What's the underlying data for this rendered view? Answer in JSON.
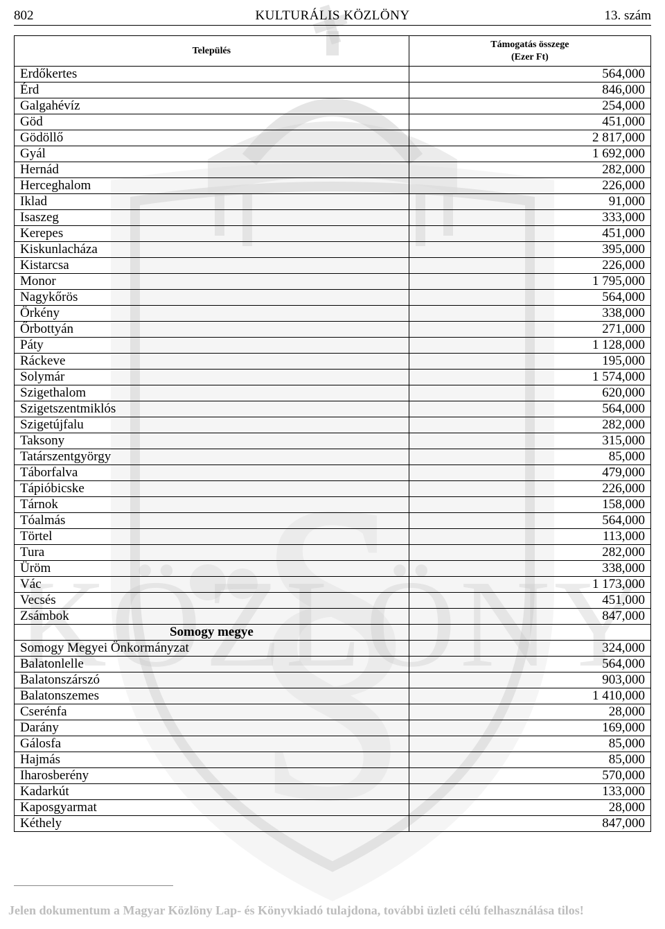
{
  "header": {
    "page_number": "802",
    "title": "KULTURÁLIS KÖZLÖNY",
    "issue": "13. szám"
  },
  "table": {
    "columns": {
      "settlement": "Település",
      "amount_line1": "Támogatás összege",
      "amount_line2": "(Ezer Ft)"
    },
    "rows": [
      {
        "type": "data",
        "name": "Erdőkertes",
        "amount": "564,000"
      },
      {
        "type": "data",
        "name": "Érd",
        "amount": "846,000"
      },
      {
        "type": "data",
        "name": "Galgahévíz",
        "amount": "254,000"
      },
      {
        "type": "data",
        "name": "Göd",
        "amount": "451,000"
      },
      {
        "type": "data",
        "name": "Gödöllő",
        "amount": "2 817,000"
      },
      {
        "type": "data",
        "name": "Gyál",
        "amount": "1 692,000"
      },
      {
        "type": "data",
        "name": "Hernád",
        "amount": "282,000"
      },
      {
        "type": "data",
        "name": "Herceghalom",
        "amount": "226,000"
      },
      {
        "type": "data",
        "name": "Iklad",
        "amount": "91,000"
      },
      {
        "type": "data",
        "name": "Isaszeg",
        "amount": "333,000"
      },
      {
        "type": "data",
        "name": "Kerepes",
        "amount": "451,000"
      },
      {
        "type": "data",
        "name": "Kiskunlacháza",
        "amount": "395,000"
      },
      {
        "type": "data",
        "name": "Kistarcsa",
        "amount": "226,000"
      },
      {
        "type": "data",
        "name": "Monor",
        "amount": "1 795,000"
      },
      {
        "type": "data",
        "name": "Nagykőrös",
        "amount": "564,000"
      },
      {
        "type": "data",
        "name": "Örkény",
        "amount": "338,000"
      },
      {
        "type": "data",
        "name": "Őrbottyán",
        "amount": "271,000"
      },
      {
        "type": "data",
        "name": "Páty",
        "amount": "1 128,000"
      },
      {
        "type": "data",
        "name": "Ráckeve",
        "amount": "195,000"
      },
      {
        "type": "data",
        "name": "Solymár",
        "amount": "1 574,000"
      },
      {
        "type": "data",
        "name": "Szigethalom",
        "amount": "620,000"
      },
      {
        "type": "data",
        "name": "Szigetszentmiklós",
        "amount": "564,000"
      },
      {
        "type": "data",
        "name": "Szigetújfalu",
        "amount": "282,000"
      },
      {
        "type": "data",
        "name": "Taksony",
        "amount": "315,000"
      },
      {
        "type": "data",
        "name": "Tatárszentgyörgy",
        "amount": "85,000"
      },
      {
        "type": "data",
        "name": "Táborfalva",
        "amount": "479,000"
      },
      {
        "type": "data",
        "name": "Tápióbicske",
        "amount": "226,000"
      },
      {
        "type": "data",
        "name": "Tárnok",
        "amount": "158,000"
      },
      {
        "type": "data",
        "name": "Tóalmás",
        "amount": "564,000"
      },
      {
        "type": "data",
        "name": "Törtel",
        "amount": "113,000"
      },
      {
        "type": "data",
        "name": "Tura",
        "amount": "282,000"
      },
      {
        "type": "data",
        "name": "Üröm",
        "amount": "338,000"
      },
      {
        "type": "data",
        "name": "Vác",
        "amount": "1 173,000"
      },
      {
        "type": "data",
        "name": "Vecsés",
        "amount": "451,000"
      },
      {
        "type": "data",
        "name": "Zsámbok",
        "amount": "847,000"
      },
      {
        "type": "section",
        "name": "Somogy megye"
      },
      {
        "type": "data",
        "name": "Somogy Megyei Önkormányzat",
        "amount": "324,000"
      },
      {
        "type": "data",
        "name": "Balatonlelle",
        "amount": "564,000"
      },
      {
        "type": "data",
        "name": "Balatonszárszó",
        "amount": "903,000"
      },
      {
        "type": "data",
        "name": "Balatonszemes",
        "amount": "1 410,000"
      },
      {
        "type": "data",
        "name": "Cserénfa",
        "amount": "28,000"
      },
      {
        "type": "data",
        "name": "Darány",
        "amount": "169,000"
      },
      {
        "type": "data",
        "name": "Gálosfa",
        "amount": "85,000"
      },
      {
        "type": "data",
        "name": "Hajmás",
        "amount": "85,000"
      },
      {
        "type": "data",
        "name": "Iharosberény",
        "amount": "570,000"
      },
      {
        "type": "data",
        "name": "Kadarkút",
        "amount": "133,000"
      },
      {
        "type": "data",
        "name": "Kaposgyarmat",
        "amount": "28,000"
      },
      {
        "type": "data",
        "name": "Kéthely",
        "amount": "847,000"
      }
    ]
  },
  "footer": {
    "disclaimer": "Jelen dokumentum a Magyar Közlöny Lap- és Könyvkiadó tulajdona, további üzleti célú felhasználása tilos!"
  },
  "watermark": {
    "shield_color": "#e9e9e9",
    "crown_color": "#d9d9d9",
    "text_color": "#cfcfcf",
    "word": "KÖZLÖNY"
  }
}
